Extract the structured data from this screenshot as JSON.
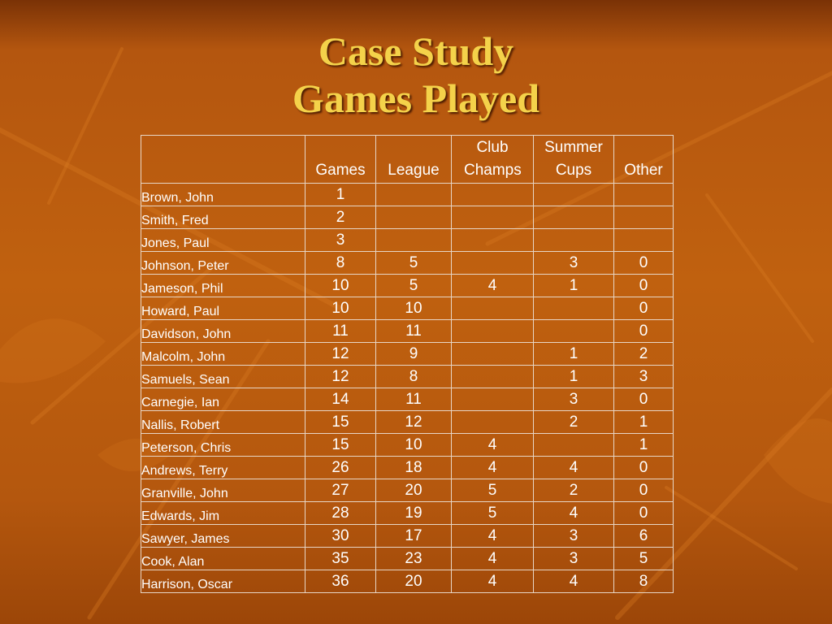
{
  "title": {
    "line1": "Case Study",
    "line2": "Games Played"
  },
  "colors": {
    "title": "#f4d24a",
    "background": "#c0610f",
    "table_text": "#ffffff",
    "grid_lines": "#e8d6c6"
  },
  "table": {
    "headers": [
      "",
      "Games",
      "League",
      "Club Champs",
      "Summer Cups",
      "Other"
    ],
    "rows": [
      {
        "name": "Brown, John",
        "games": "1",
        "league": "",
        "club": "",
        "summer": "",
        "other": ""
      },
      {
        "name": "Smith, Fred",
        "games": "2",
        "league": "",
        "club": "",
        "summer": "",
        "other": ""
      },
      {
        "name": "Jones, Paul",
        "games": "3",
        "league": "",
        "club": "",
        "summer": "",
        "other": ""
      },
      {
        "name": "Johnson, Peter",
        "games": "8",
        "league": "5",
        "club": "",
        "summer": "3",
        "other": "0"
      },
      {
        "name": "Jameson, Phil",
        "games": "10",
        "league": "5",
        "club": "4",
        "summer": "1",
        "other": "0"
      },
      {
        "name": "Howard, Paul",
        "games": "10",
        "league": "10",
        "club": "",
        "summer": "",
        "other": "0"
      },
      {
        "name": "Davidson, John",
        "games": "11",
        "league": "11",
        "club": "",
        "summer": "",
        "other": "0"
      },
      {
        "name": "Malcolm, John",
        "games": "12",
        "league": "9",
        "club": "",
        "summer": "1",
        "other": "2"
      },
      {
        "name": "Samuels, Sean",
        "games": "12",
        "league": "8",
        "club": "",
        "summer": "1",
        "other": "3"
      },
      {
        "name": "Carnegie, Ian",
        "games": "14",
        "league": "11",
        "club": "",
        "summer": "3",
        "other": "0"
      },
      {
        "name": "Nallis, Robert",
        "games": "15",
        "league": "12",
        "club": "",
        "summer": "2",
        "other": "1"
      },
      {
        "name": "Peterson, Chris",
        "games": "15",
        "league": "10",
        "club": "4",
        "summer": "",
        "other": "1"
      },
      {
        "name": "Andrews, Terry",
        "games": "26",
        "league": "18",
        "club": "4",
        "summer": "4",
        "other": "0"
      },
      {
        "name": "Granville, John",
        "games": "27",
        "league": "20",
        "club": "5",
        "summer": "2",
        "other": "0"
      },
      {
        "name": "Edwards, Jim",
        "games": "28",
        "league": "19",
        "club": "5",
        "summer": "4",
        "other": "0"
      },
      {
        "name": "Sawyer, James",
        "games": "30",
        "league": "17",
        "club": "4",
        "summer": "3",
        "other": "6"
      },
      {
        "name": "Cook, Alan",
        "games": "35",
        "league": "23",
        "club": "4",
        "summer": "3",
        "other": "5"
      },
      {
        "name": "Harrison, Oscar",
        "games": "36",
        "league": "20",
        "club": "4",
        "summer": "4",
        "other": "8"
      }
    ]
  }
}
